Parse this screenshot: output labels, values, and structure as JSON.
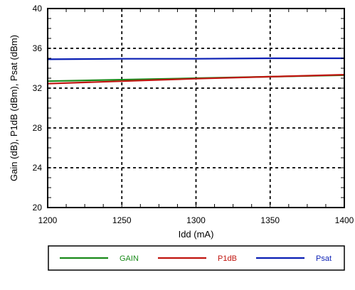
{
  "chart_data": {
    "type": "line",
    "xlabel": "Idd (mA)",
    "ylabel": "Gain (dB), P1dB (dBm), Psat (dBm)",
    "xlim": [
      1200,
      1400
    ],
    "ylim": [
      20,
      40
    ],
    "x_ticks": [
      1200,
      1250,
      1300,
      1350,
      1400
    ],
    "y_ticks": [
      20,
      24,
      28,
      32,
      36,
      40
    ],
    "grid": "dashed",
    "legend_position": "bottom",
    "series": [
      {
        "name": "GAIN",
        "color": "#1a8a1a",
        "x": [
          1200,
          1250,
          1300,
          1350,
          1400
        ],
        "y": [
          32.7,
          32.85,
          33.0,
          33.15,
          33.3
        ]
      },
      {
        "name": "P1dB",
        "color": "#c0150f",
        "x": [
          1200,
          1250,
          1300,
          1350,
          1400
        ],
        "y": [
          32.45,
          32.7,
          32.95,
          33.15,
          33.35
        ]
      },
      {
        "name": "Psat",
        "color": "#0a1fb4",
        "x": [
          1200,
          1250,
          1300,
          1350,
          1400
        ],
        "y": [
          34.9,
          34.95,
          34.95,
          35.0,
          35.0
        ]
      }
    ]
  }
}
